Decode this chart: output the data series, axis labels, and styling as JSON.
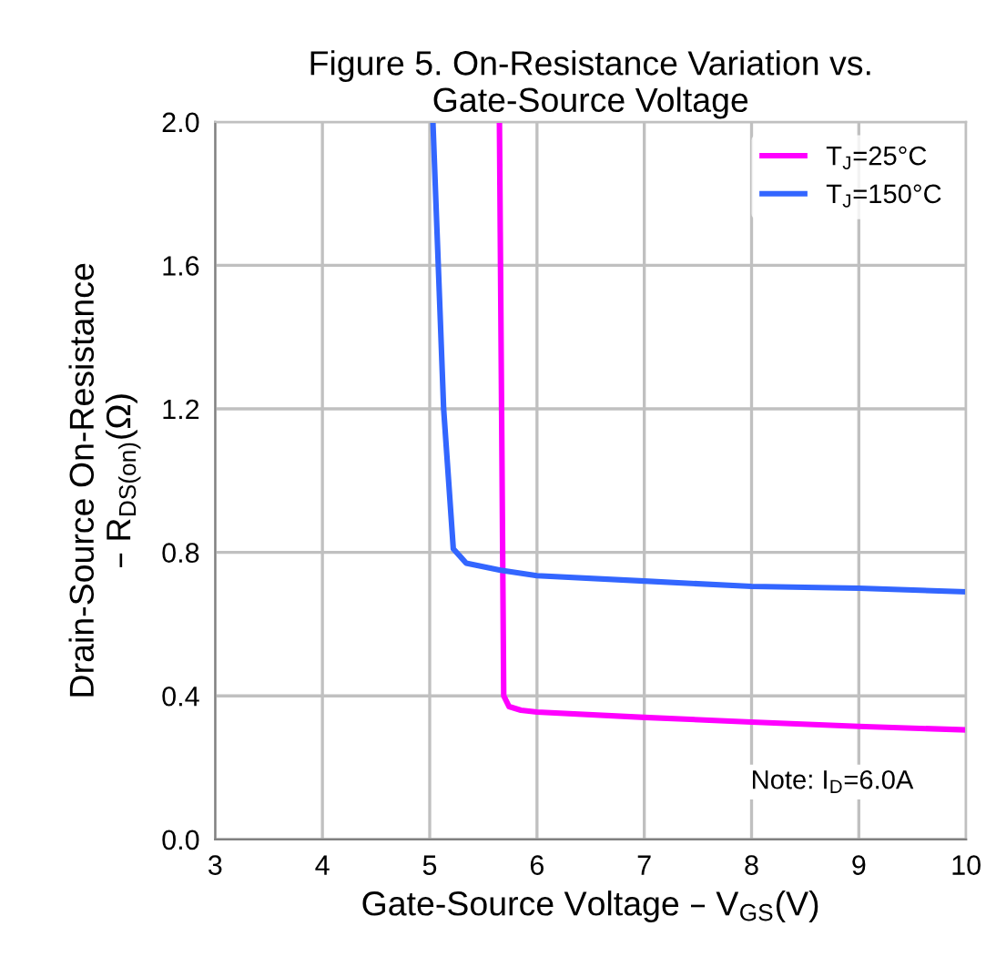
{
  "chart_data": {
    "type": "line",
    "title": "Figure 5. On-Resistance Variation vs.\nGate-Source Voltage",
    "xlabel": "Gate-Source Voltage – V$_{GS}$(V)",
    "ylabel": "Drain-Source On-Resistance\n– R$_{DS(on)}$(Ω)",
    "series": [
      {
        "name": "T$_{J}$=25°C",
        "color": "#ff00ff",
        "x": [
          5.65,
          5.67,
          5.69,
          5.74,
          5.85,
          6,
          7,
          8,
          9,
          10
        ],
        "values": [
          2.0,
          1.2,
          0.4,
          0.37,
          0.36,
          0.355,
          0.34,
          0.327,
          0.315,
          0.305
        ]
      },
      {
        "name": "T$_{J}$=150°C",
        "color": "#3366ff",
        "x": [
          5.03,
          5.13,
          5.22,
          5.34,
          5.66,
          6,
          7,
          8,
          9,
          10
        ],
        "values": [
          2.0,
          1.2,
          0.81,
          0.77,
          0.75,
          0.735,
          0.72,
          0.705,
          0.7,
          0.69
        ]
      }
    ],
    "xlim": [
      3,
      10
    ],
    "xticks": [
      3,
      4,
      5,
      6,
      7,
      8,
      9,
      10
    ],
    "ylim": [
      0.0,
      2.0
    ],
    "yticks": [
      {
        "value": 0,
        "label": "0.0"
      },
      0.4,
      0.8,
      1.2,
      1.6,
      {
        "value": 2,
        "label": "2.0"
      }
    ],
    "grid": true,
    "legend": "top right",
    "marker": "none",
    "line_style": "solid",
    "annotations": [
      "Note: I$_{D}$=6.0A"
    ]
  }
}
